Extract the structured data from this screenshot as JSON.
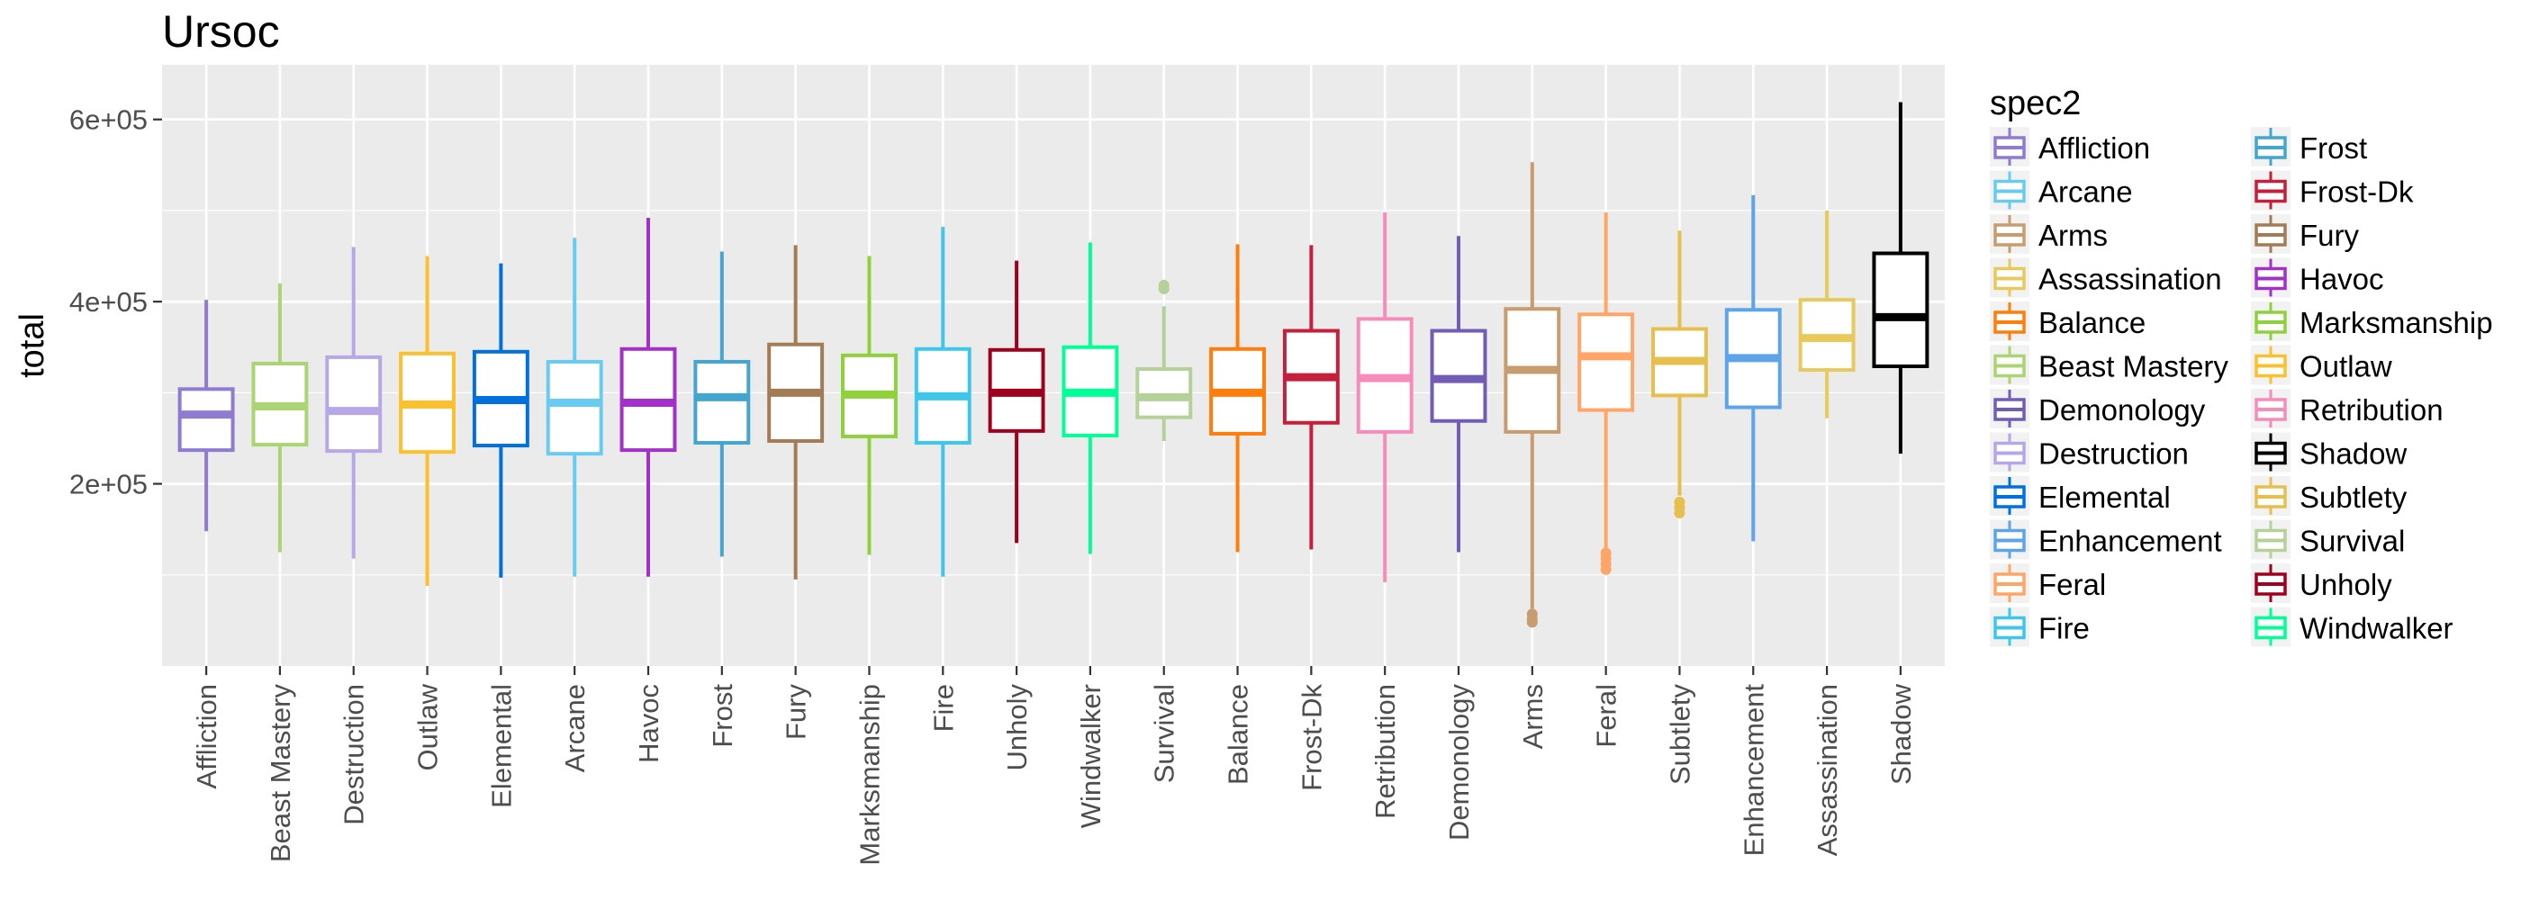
{
  "chart_data": {
    "type": "boxplot",
    "title": "Ursoc",
    "xlabel": "",
    "ylabel": "total",
    "ylim": [
      0,
      660000
    ],
    "yticks": [
      200000,
      400000,
      600000
    ],
    "ytick_labels": [
      "2e+05",
      "4e+05",
      "6e+05"
    ],
    "grid": true,
    "legend": {
      "title": "spec2",
      "position": "right",
      "columns": 2,
      "entries": [
        {
          "name": "Affliction",
          "color": "#8f7bd0"
        },
        {
          "name": "Arcane",
          "color": "#69cbf0"
        },
        {
          "name": "Arms",
          "color": "#c79c6e"
        },
        {
          "name": "Assassination",
          "color": "#e8c95b"
        },
        {
          "name": "Balance",
          "color": "#ff7d0a"
        },
        {
          "name": "Beast Mastery",
          "color": "#abd473"
        },
        {
          "name": "Demonology",
          "color": "#735cb5"
        },
        {
          "name": "Destruction",
          "color": "#b8a7e8"
        },
        {
          "name": "Elemental",
          "color": "#0070de"
        },
        {
          "name": "Enhancement",
          "color": "#5ea4e8"
        },
        {
          "name": "Feral",
          "color": "#ffa566"
        },
        {
          "name": "Fire",
          "color": "#3fc7eb"
        },
        {
          "name": "Frost",
          "color": "#44a5cf"
        },
        {
          "name": "Frost-Dk",
          "color": "#c41f3b"
        },
        {
          "name": "Fury",
          "color": "#a37b55"
        },
        {
          "name": "Havoc",
          "color": "#a330c9"
        },
        {
          "name": "Marksmanship",
          "color": "#8ed13b"
        },
        {
          "name": "Outlaw",
          "color": "#fbc02d"
        },
        {
          "name": "Retribution",
          "color": "#f58cba"
        },
        {
          "name": "Shadow",
          "color": "#000000"
        },
        {
          "name": "Subtlety",
          "color": "#e6bf4f"
        },
        {
          "name": "Survival",
          "color": "#b5d19a"
        },
        {
          "name": "Unholy",
          "color": "#a0001e"
        },
        {
          "name": "Windwalker",
          "color": "#00ff96"
        }
      ]
    },
    "boxes": [
      {
        "category": "Affliction",
        "spec": "Affliction",
        "min": 148000,
        "q1": 237000,
        "median": 276000,
        "q3": 304000,
        "max": 402000,
        "outliers": []
      },
      {
        "category": "Beast Mastery",
        "spec": "Beast Mastery",
        "min": 125000,
        "q1": 243000,
        "median": 285000,
        "q3": 332000,
        "max": 420000,
        "outliers": []
      },
      {
        "category": "Destruction",
        "spec": "Destruction",
        "min": 118000,
        "q1": 236000,
        "median": 280000,
        "q3": 339000,
        "max": 460000,
        "outliers": []
      },
      {
        "category": "Outlaw",
        "spec": "Outlaw",
        "min": 88000,
        "q1": 235000,
        "median": 287000,
        "q3": 343000,
        "max": 450000,
        "outliers": []
      },
      {
        "category": "Elemental",
        "spec": "Elemental",
        "min": 97000,
        "q1": 242000,
        "median": 292000,
        "q3": 345000,
        "max": 442000,
        "outliers": []
      },
      {
        "category": "Arcane",
        "spec": "Arcane",
        "min": 98000,
        "q1": 233000,
        "median": 289000,
        "q3": 334000,
        "max": 470000,
        "outliers": []
      },
      {
        "category": "Havoc",
        "spec": "Havoc",
        "min": 98000,
        "q1": 237000,
        "median": 289000,
        "q3": 348000,
        "max": 492000,
        "outliers": []
      },
      {
        "category": "Frost",
        "spec": "Frost",
        "min": 120000,
        "q1": 245000,
        "median": 295000,
        "q3": 334000,
        "max": 455000,
        "outliers": []
      },
      {
        "category": "Fury",
        "spec": "Fury",
        "min": 95000,
        "q1": 247000,
        "median": 300000,
        "q3": 353000,
        "max": 462000,
        "outliers": []
      },
      {
        "category": "Marksmanship",
        "spec": "Marksmanship",
        "min": 122000,
        "q1": 252000,
        "median": 298000,
        "q3": 341000,
        "max": 450000,
        "outliers": []
      },
      {
        "category": "Fire",
        "spec": "Fire",
        "min": 98000,
        "q1": 245000,
        "median": 296000,
        "q3": 348000,
        "max": 482000,
        "outliers": []
      },
      {
        "category": "Unholy",
        "spec": "Unholy",
        "min": 135000,
        "q1": 258000,
        "median": 300000,
        "q3": 347000,
        "max": 445000,
        "outliers": []
      },
      {
        "category": "Windwalker",
        "spec": "Windwalker",
        "min": 123000,
        "q1": 253000,
        "median": 300000,
        "q3": 350000,
        "max": 465000,
        "outliers": []
      },
      {
        "category": "Survival",
        "spec": "Survival",
        "min": 247000,
        "q1": 273000,
        "median": 295000,
        "q3": 326000,
        "max": 395000,
        "outliers": [
          414000,
          418000
        ]
      },
      {
        "category": "Balance",
        "spec": "Balance",
        "min": 125000,
        "q1": 255000,
        "median": 300000,
        "q3": 348000,
        "max": 463000,
        "outliers": []
      },
      {
        "category": "Frost-Dk",
        "spec": "Frost-Dk",
        "min": 128000,
        "q1": 267000,
        "median": 317000,
        "q3": 368000,
        "max": 462000,
        "outliers": []
      },
      {
        "category": "Retribution",
        "spec": "Retribution",
        "min": 92000,
        "q1": 257000,
        "median": 316000,
        "q3": 381000,
        "max": 498000,
        "outliers": []
      },
      {
        "category": "Demonology",
        "spec": "Demonology",
        "min": 125000,
        "q1": 269000,
        "median": 315000,
        "q3": 368000,
        "max": 472000,
        "outliers": []
      },
      {
        "category": "Arms",
        "spec": "Arms",
        "min": 63000,
        "q1": 257000,
        "median": 325000,
        "q3": 392000,
        "max": 553000,
        "outliers": [
          48000,
          52000,
          57000
        ]
      },
      {
        "category": "Feral",
        "spec": "Feral",
        "min": 128000,
        "q1": 281000,
        "median": 340000,
        "q3": 386000,
        "max": 498000,
        "outliers": [
          106000,
          112000,
          118000,
          124000
        ]
      },
      {
        "category": "Subtlety",
        "spec": "Subtlety",
        "min": 187000,
        "q1": 297000,
        "median": 335000,
        "q3": 370000,
        "max": 478000,
        "outliers": [
          168000,
          174000,
          180000
        ]
      },
      {
        "category": "Enhancement",
        "spec": "Enhancement",
        "min": 137000,
        "q1": 284000,
        "median": 338000,
        "q3": 391000,
        "max": 517000,
        "outliers": []
      },
      {
        "category": "Assassination",
        "spec": "Assassination",
        "min": 272000,
        "q1": 325000,
        "median": 360000,
        "q3": 402000,
        "max": 500000,
        "outliers": []
      },
      {
        "category": "Shadow",
        "spec": "Shadow",
        "min": 233000,
        "q1": 329000,
        "median": 383000,
        "q3": 453000,
        "max": 619000,
        "outliers": []
      }
    ]
  }
}
